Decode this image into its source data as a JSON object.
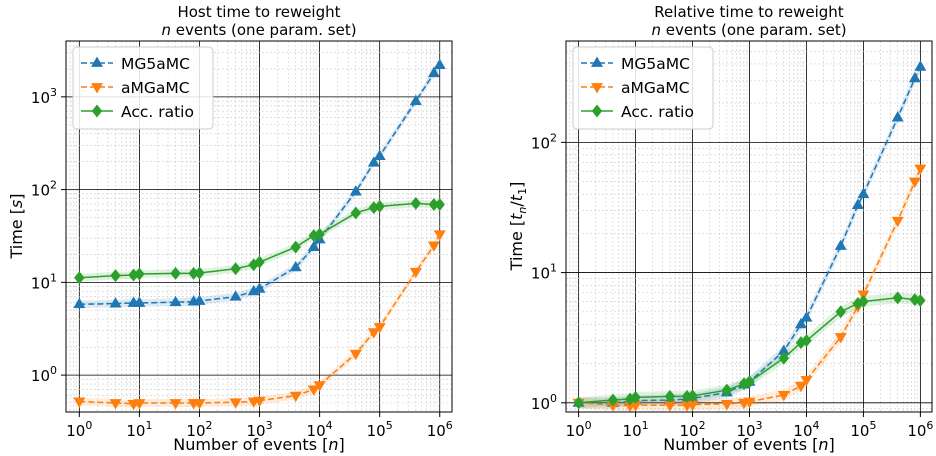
{
  "chart_data": [
    {
      "type": "line",
      "title_line1": "Host time to reweight",
      "title_line2": "n events (one param. set)",
      "xlabel": "Number of events [n]",
      "ylabel": "Time [s]",
      "xscale": "log",
      "yscale": "log",
      "xlim": [
        0.6,
        1600000
      ],
      "ylim": [
        0.4,
        4000
      ],
      "x_ticks": [
        "10^0",
        "10^1",
        "10^2",
        "10^3",
        "10^4",
        "10^5",
        "10^6"
      ],
      "y_ticks": [
        "10^0",
        "10^1",
        "10^2",
        "10^3"
      ],
      "grid": "on",
      "legend": "top-left",
      "x": [
        1,
        4,
        8,
        10,
        40,
        80,
        100,
        400,
        800,
        1000,
        4000,
        8000,
        10000,
        40000,
        80000,
        100000,
        400000,
        800000,
        1000000
      ],
      "series": [
        {
          "name": "MG5aMC",
          "marker": "triangle-up",
          "linestyle": "dashed",
          "color": "#1f77b4",
          "values": [
            5.8,
            5.9,
            6.0,
            6.0,
            6.1,
            6.2,
            6.3,
            7.0,
            8.0,
            8.5,
            14.5,
            24,
            29,
            95,
            195,
            230,
            900,
            1800,
            2200
          ]
        },
        {
          "name": "aMGaMC",
          "marker": "triangle-down",
          "linestyle": "dashed",
          "color": "#ff7f0e",
          "values": [
            0.52,
            0.5,
            0.49,
            0.5,
            0.5,
            0.5,
            0.5,
            0.51,
            0.52,
            0.53,
            0.6,
            0.7,
            0.78,
            1.7,
            2.9,
            3.3,
            13,
            25,
            33
          ]
        },
        {
          "name": "Acc. ratio",
          "marker": "diamond",
          "linestyle": "solid",
          "color": "#2ca02c",
          "values": [
            11.2,
            11.8,
            12.0,
            12.3,
            12.5,
            12.5,
            12.6,
            14.0,
            15.5,
            16.5,
            24,
            32,
            33,
            56,
            64,
            66,
            71,
            69,
            69
          ]
        }
      ]
    },
    {
      "type": "line",
      "title_line1": "Relative time to reweight",
      "title_line2": "n events (one param. set)",
      "xlabel": "Number of events [n]",
      "ylabel": "Time [t_n/t_1]",
      "xscale": "log",
      "yscale": "log",
      "xlim": [
        0.6,
        1600000
      ],
      "ylim": [
        0.85,
        600
      ],
      "x_ticks": [
        "10^0",
        "10^1",
        "10^2",
        "10^3",
        "10^4",
        "10^5",
        "10^6"
      ],
      "y_ticks": [
        "10^0",
        "10^1",
        "10^2"
      ],
      "grid": "on",
      "legend": "top-left",
      "x": [
        1,
        4,
        8,
        10,
        40,
        80,
        100,
        400,
        800,
        1000,
        4000,
        8000,
        10000,
        40000,
        80000,
        100000,
        400000,
        800000,
        1000000
      ],
      "series": [
        {
          "name": "MG5aMC",
          "marker": "triangle-up",
          "linestyle": "dashed",
          "color": "#1f77b4",
          "values": [
            1.0,
            1.0,
            1.03,
            1.04,
            1.05,
            1.07,
            1.08,
            1.2,
            1.38,
            1.45,
            2.5,
            4.0,
            4.5,
            16,
            33,
            40,
            155,
            310,
            380
          ]
        },
        {
          "name": "aMGaMC",
          "marker": "triangle-down",
          "linestyle": "dashed",
          "color": "#ff7f0e",
          "values": [
            1.0,
            0.96,
            0.95,
            0.96,
            0.96,
            0.96,
            0.97,
            0.98,
            1.0,
            1.02,
            1.15,
            1.35,
            1.5,
            3.2,
            5.5,
            6.8,
            25,
            50,
            63
          ]
        },
        {
          "name": "Acc. ratio",
          "marker": "diamond",
          "linestyle": "solid",
          "color": "#2ca02c",
          "values": [
            1.0,
            1.05,
            1.07,
            1.1,
            1.12,
            1.12,
            1.13,
            1.25,
            1.4,
            1.45,
            2.2,
            2.9,
            3.0,
            5.0,
            5.8,
            6.0,
            6.4,
            6.2,
            6.1
          ]
        }
      ]
    }
  ]
}
